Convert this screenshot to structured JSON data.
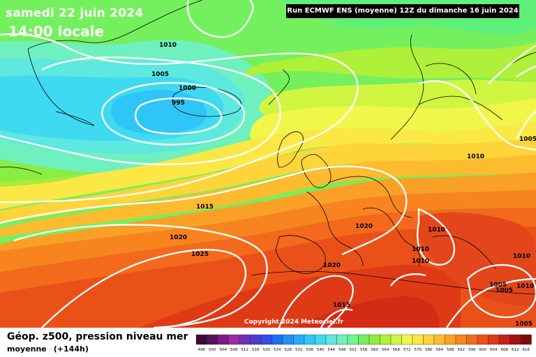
{
  "header": {
    "date": "samedi 22 juin 2024",
    "time": "14:00 locale",
    "run_info": "Run ECMWF ENS (moyenne) 12Z du dimanche 16 juin 2024"
  },
  "isobar_labels": [
    "1010",
    "1005",
    "1000",
    "995",
    "1005",
    "1010",
    "1015",
    "1020",
    "1025",
    "1020",
    "1010",
    "1010",
    "1010",
    "1010",
    "1020",
    "1015",
    "1005",
    "1005",
    "1010",
    "1005"
  ],
  "copyright": "Copyright 2024 Meteociel.fr",
  "field": {
    "title": "Géop. z500, pression niveau mer",
    "stat": "moyenne",
    "lead": "(+144h)"
  },
  "legend": {
    "values": [
      "496",
      "500",
      "504",
      "508",
      "512",
      "516",
      "520",
      "524",
      "528",
      "532",
      "536",
      "540",
      "544",
      "548",
      "552",
      "556",
      "560",
      "564",
      "568",
      "572",
      "576",
      "580",
      "584",
      "588",
      "592",
      "596",
      "600",
      "604",
      "608",
      "612",
      "616"
    ],
    "colors": [
      "#3a0a3a",
      "#5a0f5f",
      "#7d1a86",
      "#9c2aa8",
      "#6f2fb5",
      "#4a3ccf",
      "#2f4fe6",
      "#1e6df3",
      "#1f8ff5",
      "#23abf7",
      "#2fc6f7",
      "#3fdaf2",
      "#5de8e0",
      "#6ff0bf",
      "#6ef58f",
      "#74f05e",
      "#8eec3c",
      "#aef03a",
      "#cff541",
      "#f1f64b",
      "#fbe845",
      "#fdd43a",
      "#fdbb2f",
      "#fba027",
      "#f8841f",
      "#f36a1c",
      "#ea5119",
      "#df3a16",
      "#c91f13",
      "#a51010",
      "#7e0b0b"
    ]
  }
}
